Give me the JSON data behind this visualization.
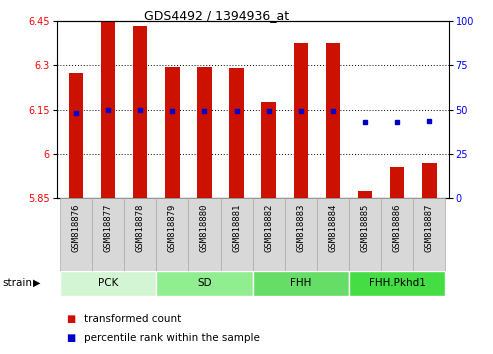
{
  "title": "GDS4492 / 1394936_at",
  "samples": [
    "GSM818876",
    "GSM818877",
    "GSM818878",
    "GSM818879",
    "GSM818880",
    "GSM818881",
    "GSM818882",
    "GSM818883",
    "GSM818884",
    "GSM818885",
    "GSM818886",
    "GSM818887"
  ],
  "red_bar_top": [
    6.275,
    6.455,
    6.435,
    6.295,
    6.295,
    6.29,
    6.175,
    6.375,
    6.375,
    5.875,
    5.955,
    5.97
  ],
  "red_bar_bottom": 5.85,
  "blue_dot_y": [
    6.138,
    6.15,
    6.15,
    6.147,
    6.147,
    6.147,
    6.147,
    6.147,
    6.147,
    6.108,
    6.108,
    6.112
  ],
  "ylim_left": [
    5.85,
    6.45
  ],
  "ylim_right": [
    0,
    100
  ],
  "yticks_left": [
    5.85,
    6.0,
    6.15,
    6.3,
    6.45
  ],
  "yticks_right": [
    0,
    25,
    50,
    75,
    100
  ],
  "groups": [
    {
      "label": "PCK",
      "start": 0,
      "end": 2,
      "color": "#d4f5d4"
    },
    {
      "label": "SD",
      "start": 3,
      "end": 5,
      "color": "#90ee90"
    },
    {
      "label": "FHH",
      "start": 6,
      "end": 8,
      "color": "#66dd66"
    },
    {
      "label": "FHH.Pkhd1",
      "start": 9,
      "end": 11,
      "color": "#44dd44"
    }
  ],
  "bar_color": "#cc1100",
  "dot_color": "#0000cc",
  "legend_red": "transformed count",
  "legend_blue": "percentile rank within the sample",
  "bar_width": 0.45,
  "label_bg": "#d8d8d8",
  "label_edge": "#aaaaaa"
}
